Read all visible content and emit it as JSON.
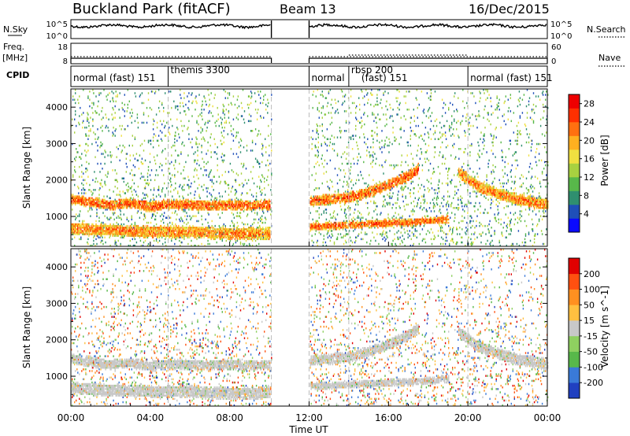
{
  "header": {
    "title": "Buckland Park (fitACF)",
    "beam": "Beam 13",
    "date": "16/Dec/2015"
  },
  "left_labels": {
    "nsky": "N.Sky",
    "freq": "Freq.",
    "freq_unit": "[MHz]",
    "cpid": "CPID"
  },
  "right_labels": {
    "nsearch": "N.Search",
    "nave": "Nave"
  },
  "strip_ticks": {
    "nsky_top": "10^5",
    "nsky_bottom": "10^0",
    "nsearch_top": "10^5",
    "nsearch_bottom": "10^0",
    "freq_top": "18",
    "freq_bottom": "8",
    "nave_top": "60",
    "nave_bottom": "0"
  },
  "cpid_segments": [
    {
      "label": "normal (fast) 151",
      "start": 0.0,
      "end": 4.9
    },
    {
      "label": "themis 3300",
      "start": 4.9,
      "end": 10.1
    },
    {
      "label": "normal",
      "start": 12.0,
      "end": 14.0
    },
    {
      "label": "rbsp 200",
      "start": 14.0,
      "end": 20.0
    },
    {
      "label": "(fast) 151",
      "start": 14.0,
      "end": 20.0
    },
    {
      "label": "normal (fast) 151",
      "start": 20.0,
      "end": 24.0
    }
  ],
  "data_gap": {
    "start": 10.1,
    "end": 12.0
  },
  "chart_data": [
    {
      "type": "heatmap",
      "name": "power-panel",
      "xlabel": "",
      "ylabel": "Slant Range [km]",
      "xlim": [
        0,
        24
      ],
      "ylim": [
        180,
        4500
      ],
      "yticks": [
        1000,
        2000,
        3000,
        4000
      ],
      "colorbar": {
        "label": "Power [dB]",
        "ticks": [
          "4",
          "8",
          "12",
          "16",
          "20",
          "24",
          "28"
        ],
        "colors": [
          "#0a0aff",
          "#1f4fb8",
          "#2f8f6f",
          "#58b84a",
          "#a8d140",
          "#f0e040",
          "#ffb020",
          "#ff7010",
          "#ff3000",
          "#ee0000"
        ],
        "range": [
          0,
          30
        ]
      },
      "bands": [
        {
          "desc": "main echo band",
          "t": [
            0,
            1,
            2,
            3,
            4,
            5,
            6,
            7,
            8,
            9,
            10
          ],
          "r": [
            1450,
            1380,
            1300,
            1350,
            1250,
            1320,
            1300,
            1280,
            1300,
            1280,
            1300
          ],
          "w": 250,
          "p": 24
        },
        {
          "desc": "near range band",
          "t": [
            0,
            2,
            4,
            6,
            8,
            10
          ],
          "r": [
            650,
            600,
            560,
            560,
            500,
            520
          ],
          "w": 300,
          "p": 22
        },
        {
          "desc": "near range band afternoon",
          "t": [
            12,
            13,
            14,
            15,
            16,
            17,
            18,
            19
          ],
          "r": [
            700,
            720,
            750,
            780,
            800,
            820,
            860,
            900
          ],
          "w": 180,
          "p": 24
        },
        {
          "desc": "afternoon main band",
          "t": [
            12,
            13,
            14,
            15,
            16,
            17,
            17.5
          ],
          "r": [
            1400,
            1450,
            1500,
            1650,
            1850,
            2100,
            2300
          ],
          "w": 260,
          "p": 24
        },
        {
          "desc": "evening band",
          "t": [
            19.5,
            20.5,
            21.5,
            22.5,
            23.5,
            24
          ],
          "r": [
            2200,
            1800,
            1600,
            1450,
            1350,
            1300
          ],
          "w": 280,
          "p": 22
        }
      ]
    },
    {
      "type": "heatmap",
      "name": "velocity-panel",
      "xlabel": "Time UT",
      "ylabel": "Slant Range [km]",
      "xlim": [
        0,
        24
      ],
      "ylim": [
        180,
        4500
      ],
      "yticks": [
        1000,
        2000,
        3000,
        4000
      ],
      "xticks": [
        "00:00",
        "04:00",
        "08:00",
        "12:00",
        "16:00",
        "20:00",
        "00:00"
      ],
      "colorbar": {
        "label": "Velocity [m s^-1]",
        "ticks": [
          "200",
          "100",
          "50",
          "15",
          "-15",
          "-50",
          "-100",
          "-200"
        ],
        "colors": [
          "#2040c0",
          "#3a7ad8",
          "#58b84a",
          "#8fd060",
          "#c8c8c8",
          "#ffc040",
          "#ff9020",
          "#ff5010",
          "#e00000"
        ],
        "range": [
          -250,
          250
        ]
      }
    }
  ]
}
